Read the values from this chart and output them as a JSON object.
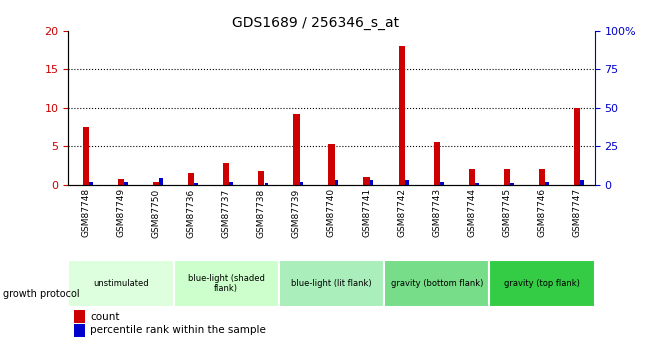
{
  "title": "GDS1689 / 256346_s_at",
  "samples": [
    "GSM87748",
    "GSM87749",
    "GSM87750",
    "GSM87736",
    "GSM87737",
    "GSM87738",
    "GSM87739",
    "GSM87740",
    "GSM87741",
    "GSM87742",
    "GSM87743",
    "GSM87744",
    "GSM87745",
    "GSM87746",
    "GSM87747"
  ],
  "count_values": [
    7.5,
    0.7,
    0.3,
    1.5,
    2.8,
    1.8,
    9.2,
    5.3,
    1.0,
    18.0,
    5.6,
    2.0,
    2.0,
    2.0,
    10.0
  ],
  "percentile_values": [
    2,
    2,
    4,
    1,
    2,
    1,
    2,
    3,
    3,
    3,
    2,
    1,
    1,
    2,
    3
  ],
  "count_color": "#cc0000",
  "percentile_color": "#0000cc",
  "ylim_left": [
    0,
    20
  ],
  "ylim_right": [
    0,
    100
  ],
  "yticks_left": [
    0,
    5,
    10,
    15,
    20
  ],
  "yticks_right": [
    0,
    25,
    50,
    75,
    100
  ],
  "ytick_labels_right": [
    "0",
    "25",
    "50",
    "75",
    "100%"
  ],
  "groups": [
    {
      "label": "unstimulated",
      "indices": [
        0,
        1,
        2
      ],
      "color": "#ddffdd"
    },
    {
      "label": "blue-light (shaded\nflank)",
      "indices": [
        3,
        4,
        5
      ],
      "color": "#ccffcc"
    },
    {
      "label": "blue-light (lit flank)",
      "indices": [
        6,
        7,
        8
      ],
      "color": "#aaeebb"
    },
    {
      "label": "gravity (bottom flank)",
      "indices": [
        9,
        10,
        11
      ],
      "color": "#77dd88"
    },
    {
      "label": "gravity (top flank)",
      "indices": [
        12,
        13,
        14
      ],
      "color": "#33cc44"
    }
  ],
  "sample_bg_color": "#cccccc",
  "growth_protocol_label": "growth protocol",
  "legend_count": "count",
  "legend_percentile": "percentile rank within the sample"
}
